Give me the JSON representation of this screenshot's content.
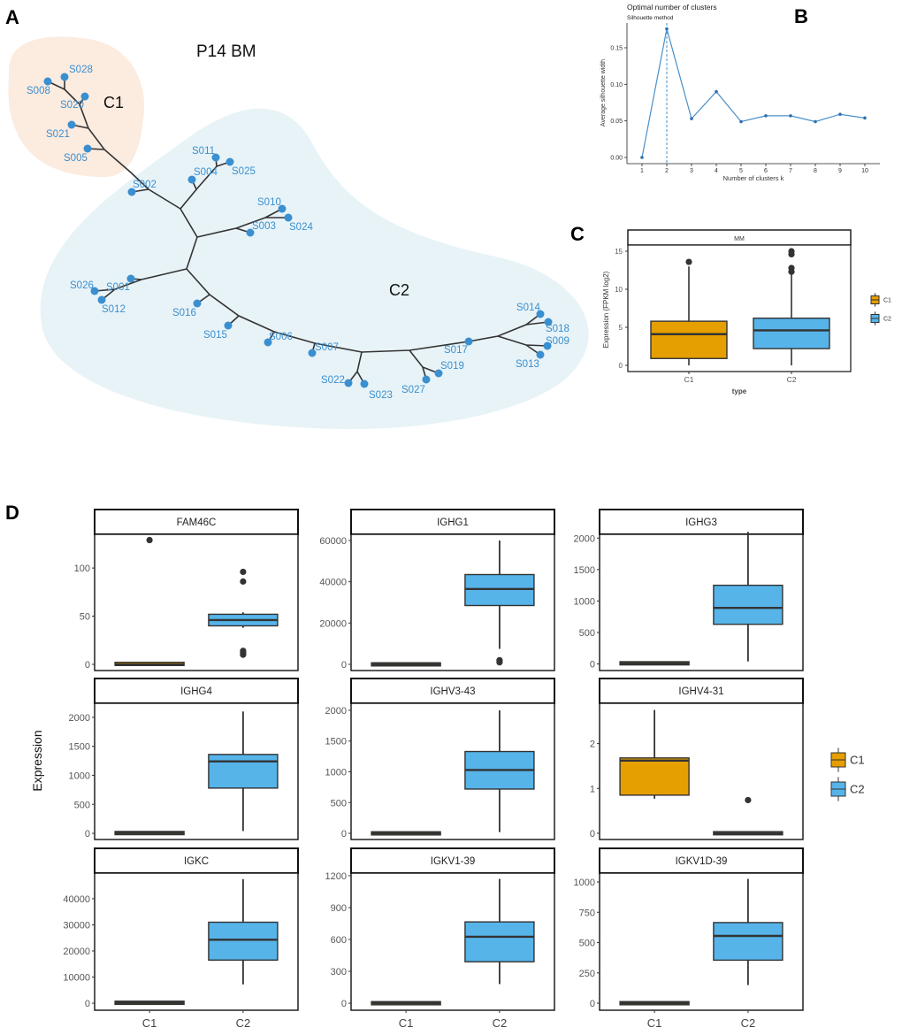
{
  "panel_labels": {
    "a": "A",
    "b": "B",
    "c": "C",
    "d": "D"
  },
  "colors": {
    "C1": "#E69F00",
    "C2": "#56B4E9",
    "tree_node": "#3A8FD0",
    "c1_hull": "#FCEBDF",
    "c2_hull": "#E8F3F7"
  },
  "chart_data": [
    {
      "type": "tree",
      "title": "P14 BM",
      "clusters": [
        "C1",
        "C2"
      ],
      "leaves": [
        {
          "name": "S008",
          "cluster": "C1"
        },
        {
          "name": "S028",
          "cluster": "C1"
        },
        {
          "name": "S020",
          "cluster": "C1"
        },
        {
          "name": "S021",
          "cluster": "C1"
        },
        {
          "name": "S005",
          "cluster": "C1"
        },
        {
          "name": "S002",
          "cluster": "C2"
        },
        {
          "name": "S011",
          "cluster": "C2"
        },
        {
          "name": "S004",
          "cluster": "C2"
        },
        {
          "name": "S025",
          "cluster": "C2"
        },
        {
          "name": "S010",
          "cluster": "C2"
        },
        {
          "name": "S003",
          "cluster": "C2"
        },
        {
          "name": "S024",
          "cluster": "C2"
        },
        {
          "name": "S026",
          "cluster": "C2"
        },
        {
          "name": "S001",
          "cluster": "C2"
        },
        {
          "name": "S012",
          "cluster": "C2"
        },
        {
          "name": "S016",
          "cluster": "C2"
        },
        {
          "name": "S015",
          "cluster": "C2"
        },
        {
          "name": "S006",
          "cluster": "C2"
        },
        {
          "name": "S007",
          "cluster": "C2"
        },
        {
          "name": "S022",
          "cluster": "C2"
        },
        {
          "name": "S023",
          "cluster": "C2"
        },
        {
          "name": "S027",
          "cluster": "C2"
        },
        {
          "name": "S019",
          "cluster": "C2"
        },
        {
          "name": "S017",
          "cluster": "C2"
        },
        {
          "name": "S014",
          "cluster": "C2"
        },
        {
          "name": "S018",
          "cluster": "C2"
        },
        {
          "name": "S009",
          "cluster": "C2"
        },
        {
          "name": "S013",
          "cluster": "C2"
        }
      ]
    },
    {
      "type": "line",
      "title": "Optimal number of clusters",
      "subtitle": "Silhouette method",
      "xlabel": "Number of clusters k",
      "ylabel": "Average silhouette width",
      "x": [
        1,
        2,
        3,
        4,
        5,
        6,
        7,
        8,
        9,
        10
      ],
      "x_tick_labels": [
        "1",
        "2",
        "3",
        "4",
        "5",
        "6",
        "7",
        "8",
        "9",
        "10"
      ],
      "y": [
        0.0,
        0.176,
        0.053,
        0.09,
        0.049,
        0.057,
        0.057,
        0.049,
        0.059,
        0.054
      ],
      "yticks": [
        0,
        0.05,
        0.1,
        0.15
      ],
      "ytick_labels": [
        "0.00",
        "0.05",
        "0.10",
        "0.15"
      ],
      "optimal_k": 2,
      "color": "#4A90C8"
    },
    {
      "type": "box",
      "strip": "MM",
      "xlabel": "type",
      "ylabel": "Expression (FPKM log2)",
      "ylim": [
        0,
        15
      ],
      "yticks": [
        0,
        5,
        10,
        15
      ],
      "ytick_labels": [
        "0",
        "5",
        "10",
        "15"
      ],
      "categories": [
        "C1",
        "C2"
      ],
      "boxes": [
        {
          "group": "C1",
          "lower_whisker": 0,
          "q1": 0.9,
          "median": 4.1,
          "q3": 5.8,
          "upper_whisker": 13.0,
          "outliers": [
            13.6
          ]
        },
        {
          "group": "C2",
          "lower_whisker": 0,
          "q1": 2.2,
          "median": 4.6,
          "q3": 6.2,
          "upper_whisker": 12.0,
          "outliers": [
            12.3,
            12.8,
            14.6,
            15.0
          ]
        }
      ],
      "legend": [
        "C1",
        "C2"
      ]
    },
    {
      "type": "box",
      "ylabel": "Expression",
      "categories": [
        "C1",
        "C2"
      ],
      "legend": [
        "C1",
        "C2"
      ],
      "panels": [
        {
          "gene": "FAM46C",
          "ylim": [
            -6.4,
            135
          ],
          "yticks": [
            0,
            50,
            100
          ],
          "ytick_labels": [
            "0",
            "50",
            "100"
          ],
          "boxes": [
            {
              "group": "C1",
              "lower_whisker": 0,
              "q1": 0,
              "median": 0,
              "q3": 1,
              "upper_whisker": 1,
              "outliers": [
                129
              ]
            },
            {
              "group": "C2",
              "lower_whisker": 38,
              "q1": 40,
              "median": 46,
              "q3": 52,
              "upper_whisker": 54,
              "outliers": [
                96,
                86,
                14,
                12,
                10
              ]
            }
          ]
        },
        {
          "gene": "IGHG1",
          "ylim": [
            -3000,
            63000
          ],
          "yticks": [
            0,
            20000,
            40000,
            60000
          ],
          "ytick_labels": [
            "0",
            "20000",
            "40000",
            "60000"
          ],
          "boxes": [
            {
              "group": "C1",
              "lower_whisker": 0,
              "q1": 0,
              "median": 0,
              "q3": 0,
              "upper_whisker": 0,
              "outliers": []
            },
            {
              "group": "C2",
              "lower_whisker": 7500,
              "q1": 28500,
              "median": 36500,
              "q3": 43500,
              "upper_whisker": 60000,
              "outliers": [
                2000,
                1000
              ]
            }
          ]
        },
        {
          "gene": "IGHG3",
          "ylim": [
            -105,
            2060
          ],
          "yticks": [
            0,
            500,
            1000,
            1500,
            2000
          ],
          "ytick_labels": [
            "0",
            "500",
            "1000",
            "1500",
            "2000"
          ],
          "boxes": [
            {
              "group": "C1",
              "lower_whisker": 0,
              "q1": 0,
              "median": 10,
              "q3": 20,
              "upper_whisker": 20,
              "outliers": []
            },
            {
              "group": "C2",
              "lower_whisker": 40,
              "q1": 630,
              "median": 890,
              "q3": 1250,
              "upper_whisker": 2100,
              "outliers": []
            }
          ]
        },
        {
          "gene": "IGHG4",
          "ylim": [
            -106,
            2242
          ],
          "yticks": [
            0,
            500,
            1000,
            1500,
            2000
          ],
          "ytick_labels": [
            "0",
            "500",
            "1000",
            "1500",
            "2000"
          ],
          "boxes": [
            {
              "group": "C1",
              "lower_whisker": 0,
              "q1": 0,
              "median": 5,
              "q3": 10,
              "upper_whisker": 10,
              "outliers": []
            },
            {
              "group": "C2",
              "lower_whisker": 40,
              "q1": 780,
              "median": 1240,
              "q3": 1360,
              "upper_whisker": 2100,
              "outliers": []
            }
          ]
        },
        {
          "gene": "IGHV3-43",
          "ylim": [
            -100,
            2114
          ],
          "yticks": [
            0,
            500,
            1000,
            1500,
            2000
          ],
          "ytick_labels": [
            "0",
            "500",
            "1000",
            "1500",
            "2000"
          ],
          "boxes": [
            {
              "group": "C1",
              "lower_whisker": 0,
              "q1": 0,
              "median": 0,
              "q3": 0,
              "upper_whisker": 0,
              "outliers": []
            },
            {
              "group": "C2",
              "lower_whisker": 20,
              "q1": 720,
              "median": 1030,
              "q3": 1330,
              "upper_whisker": 2000,
              "outliers": []
            }
          ]
        },
        {
          "gene": "IGHV4-31",
          "ylim": [
            -0.14,
            2.9
          ],
          "yticks": [
            0,
            1,
            2
          ],
          "ytick_labels": [
            "0",
            "1",
            "2"
          ],
          "boxes": [
            {
              "group": "C1",
              "lower_whisker": 0.77,
              "q1": 0.85,
              "median": 1.62,
              "q3": 1.68,
              "upper_whisker": 2.75,
              "outliers": []
            },
            {
              "group": "C2",
              "lower_whisker": 0,
              "q1": 0,
              "median": 0,
              "q3": 0,
              "upper_whisker": 0,
              "outliers": [
                0.74
              ]
            }
          ]
        },
        {
          "gene": "IGKC",
          "ylim": [
            -2700,
            49800
          ],
          "yticks": [
            0,
            10000,
            20000,
            30000,
            40000
          ],
          "ytick_labels": [
            "0",
            "10000",
            "20000",
            "30000",
            "40000"
          ],
          "boxes": [
            {
              "group": "C1",
              "lower_whisker": 0,
              "q1": 0,
              "median": 100,
              "q3": 300,
              "upper_whisker": 300,
              "outliers": []
            },
            {
              "group": "C2",
              "lower_whisker": 7200,
              "q1": 16500,
              "median": 24300,
              "q3": 31000,
              "upper_whisker": 47500,
              "outliers": []
            }
          ]
        },
        {
          "gene": "IGKV1-39",
          "ylim": [
            -66,
            1224
          ],
          "yticks": [
            0,
            300,
            600,
            900,
            1200
          ],
          "ytick_labels": [
            "0",
            "300",
            "600",
            "900",
            "1200"
          ],
          "boxes": [
            {
              "group": "C1",
              "lower_whisker": 0,
              "q1": 0,
              "median": 0,
              "q3": 0,
              "upper_whisker": 0,
              "outliers": []
            },
            {
              "group": "C2",
              "lower_whisker": 180,
              "q1": 390,
              "median": 625,
              "q3": 765,
              "upper_whisker": 1170,
              "outliers": []
            }
          ]
        },
        {
          "gene": "IGKV1D-39",
          "ylim": [
            -58,
            1073
          ],
          "yticks": [
            0,
            250,
            500,
            750,
            1000
          ],
          "ytick_labels": [
            "0",
            "250",
            "500",
            "750",
            "1000"
          ],
          "boxes": [
            {
              "group": "C1",
              "lower_whisker": 0,
              "q1": 0,
              "median": 0,
              "q3": 0,
              "upper_whisker": 0,
              "outliers": []
            },
            {
              "group": "C2",
              "lower_whisker": 150,
              "q1": 355,
              "median": 555,
              "q3": 665,
              "upper_whisker": 1025,
              "outliers": []
            }
          ]
        }
      ]
    }
  ]
}
